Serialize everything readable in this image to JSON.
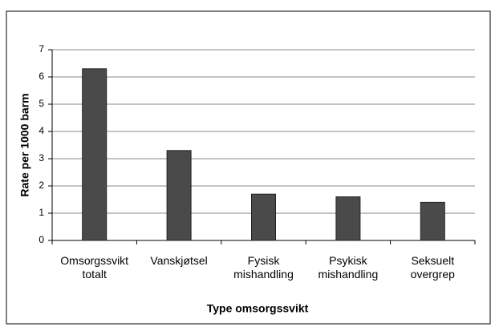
{
  "chart_data": {
    "type": "bar",
    "xlabel": "Type omsorgssvikt",
    "ylabel": "Rate per 1000 barm",
    "categories": [
      "Omsorgssvikt totalt",
      "Vanskjøtsel",
      "Fysisk mishandling",
      "Psykisk mishandling",
      "Seksuelt overgrep"
    ],
    "values": [
      6.3,
      3.3,
      1.7,
      1.6,
      1.4
    ],
    "color": "#4a4a4a",
    "ylim": [
      0,
      7
    ],
    "yticks": [
      0,
      1,
      2,
      3,
      4,
      5,
      6,
      7
    ],
    "grid": true
  }
}
